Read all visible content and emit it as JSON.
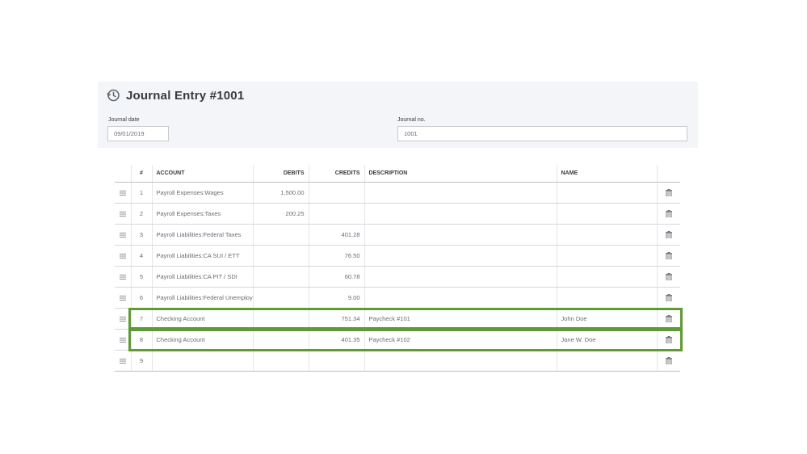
{
  "header": {
    "title": "Journal Entry #1001",
    "title_icon": "recent-history-icon",
    "journal_date_label": "Journal date",
    "journal_date_value": "09/01/2019",
    "journal_no_label": "Journal no.",
    "journal_no_value": "1001"
  },
  "table": {
    "columns": {
      "num": "#",
      "account": "ACCOUNT",
      "debits": "DEBITS",
      "credits": "CREDITS",
      "description": "DESCRIPTION",
      "name": "NAME"
    },
    "rows": [
      {
        "num": "1",
        "account": "Payroll Expenses:Wages",
        "debit": "1,500.00",
        "credit": "",
        "description": "",
        "name": ""
      },
      {
        "num": "2",
        "account": "Payroll Expenses:Taxes",
        "debit": "200.25",
        "credit": "",
        "description": "",
        "name": ""
      },
      {
        "num": "3",
        "account": "Payroll Liabilities:Federal Taxes",
        "debit": "",
        "credit": "401.28",
        "description": "",
        "name": ""
      },
      {
        "num": "4",
        "account": "Payroll Liabilities:CA SUI / ETT",
        "debit": "",
        "credit": "76.50",
        "description": "",
        "name": ""
      },
      {
        "num": "5",
        "account": "Payroll Liabilities:CA PIT / SDI",
        "debit": "",
        "credit": "60.78",
        "description": "",
        "name": ""
      },
      {
        "num": "6",
        "account": "Payroll Liabilities:Federal Unemployment",
        "debit": "",
        "credit": "9.00",
        "description": "",
        "name": ""
      },
      {
        "num": "7",
        "account": "Checking Account",
        "debit": "",
        "credit": "751.34",
        "description": "Paycheck #101",
        "name": "John Doe"
      },
      {
        "num": "8",
        "account": "Checking Account",
        "debit": "",
        "credit": "401.35",
        "description": "Paycheck #102",
        "name": "Jane W. Doe"
      },
      {
        "num": "9",
        "account": "",
        "debit": "",
        "credit": "",
        "description": "",
        "name": ""
      }
    ]
  },
  "colors": {
    "highlight_border": "#5e9a35",
    "header_panel_bg": "#f4f5f8"
  }
}
